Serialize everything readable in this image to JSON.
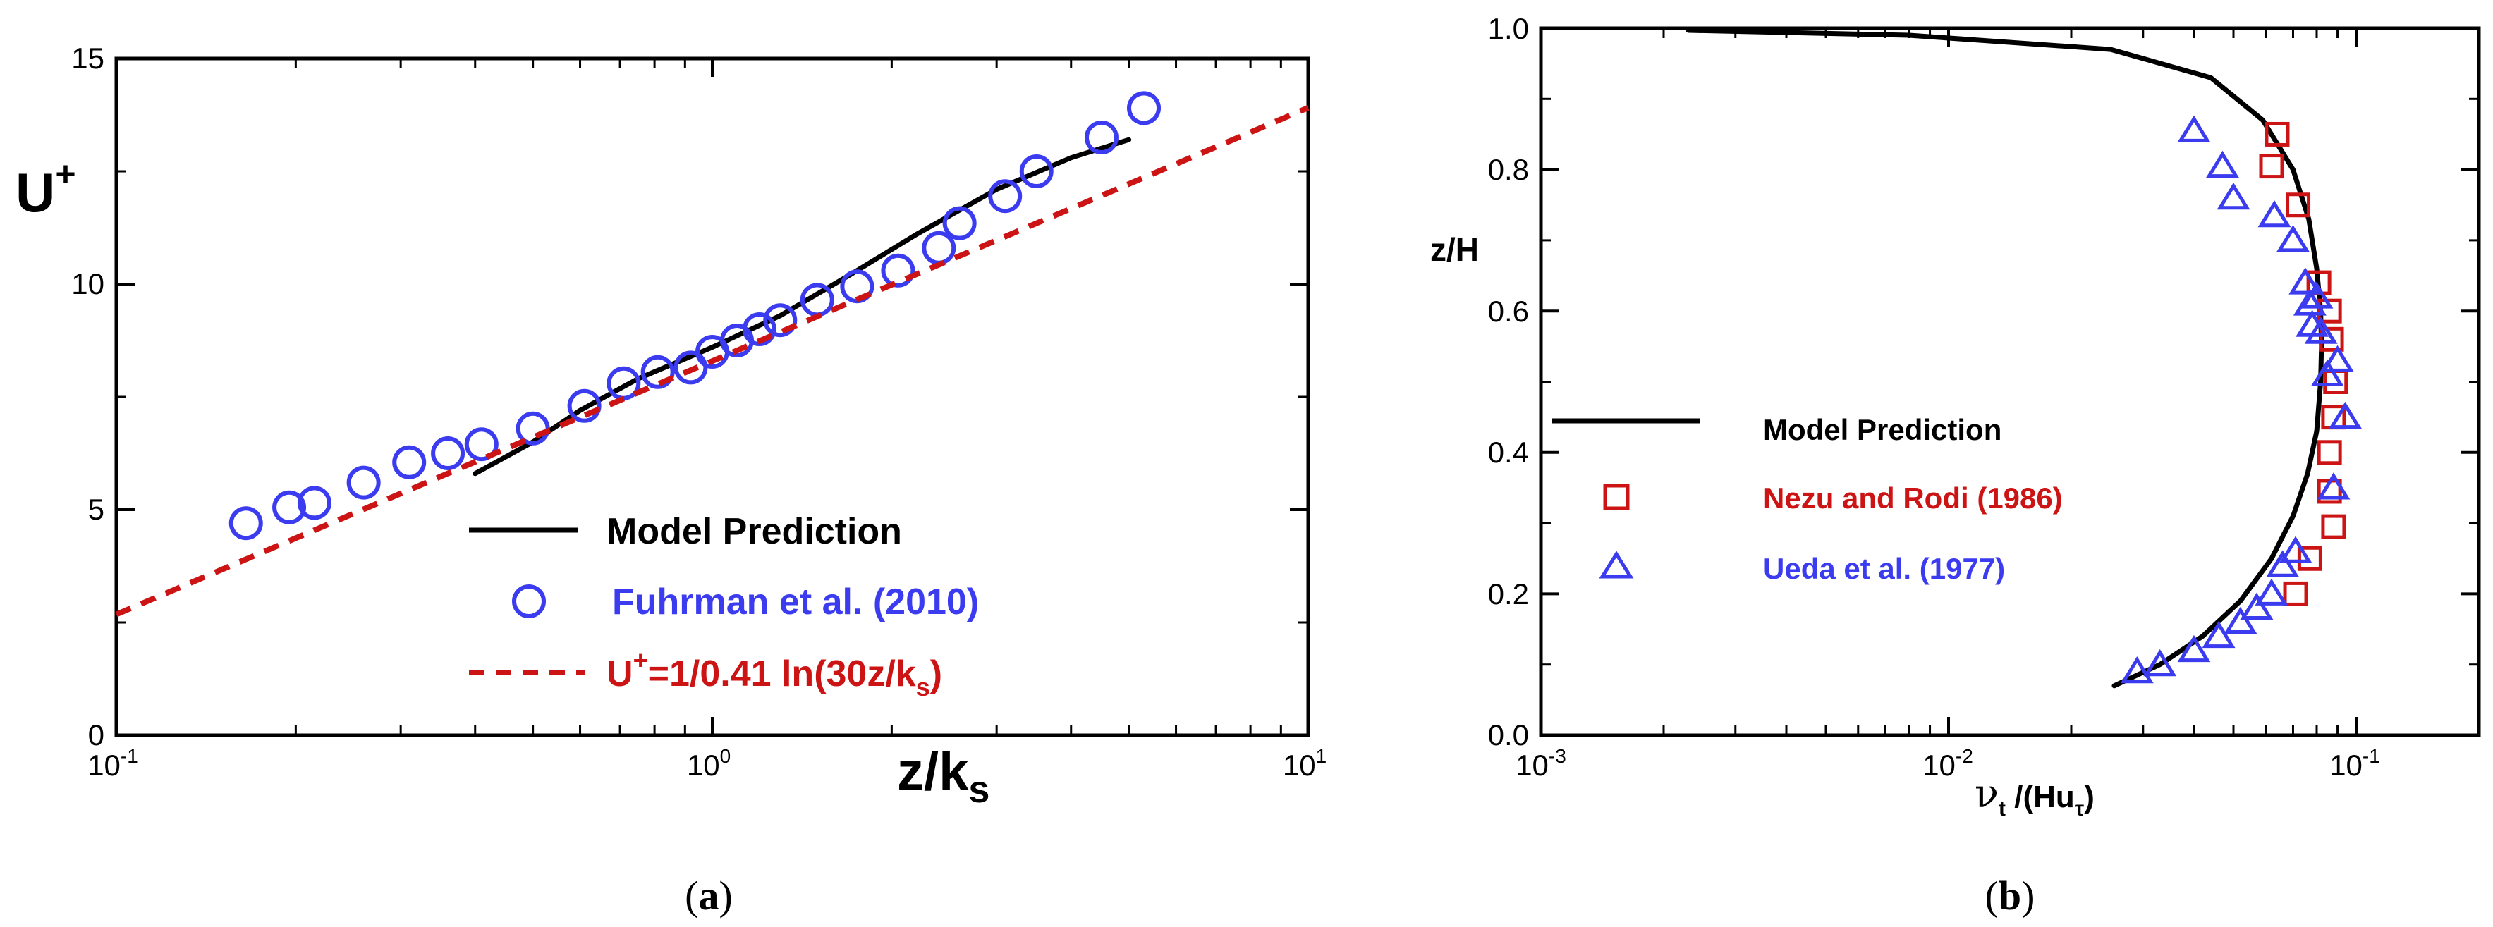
{
  "colors": {
    "model": "#000000",
    "blue": "#3b3bf0",
    "red": "#cc1414"
  },
  "chart_data": [
    {
      "type": "line",
      "panel_label": "a",
      "xscale": "log",
      "xlim": [
        0.1,
        10
      ],
      "ylim": [
        0,
        15
      ],
      "xlabel": {
        "main": "z/k",
        "sub": "s"
      },
      "ylabel": {
        "main": "U",
        "sup": "+"
      },
      "x_ticks": [
        {
          "base": "10",
          "exp": "-1"
        },
        {
          "base": "10",
          "exp": "0"
        },
        {
          "base": "10",
          "exp": "1"
        }
      ],
      "y_ticks": [
        "0",
        "5",
        "10",
        "15"
      ],
      "series": [
        {
          "name": "Model Prediction",
          "style": "solid",
          "color": "#000000",
          "x": [
            0.4,
            0.5,
            0.6,
            0.75,
            1.0,
            1.3,
            1.7,
            2.2,
            3.0,
            4.0,
            5.0
          ],
          "y": [
            5.8,
            6.5,
            7.2,
            7.9,
            8.6,
            9.3,
            10.2,
            11.1,
            12.1,
            12.8,
            13.2
          ]
        },
        {
          "name": "Fuhrman et al. (2010)",
          "style": "circle",
          "color": "#3b3bf0",
          "x": [
            0.165,
            0.195,
            0.215,
            0.26,
            0.31,
            0.36,
            0.41,
            0.5,
            0.61,
            0.71,
            0.81,
            0.92,
            1.0,
            1.1,
            1.2,
            1.3,
            1.5,
            1.75,
            2.05,
            2.4,
            2.6,
            3.1,
            3.5,
            4.5,
            5.3
          ],
          "y": [
            4.7,
            5.05,
            5.15,
            5.6,
            6.05,
            6.25,
            6.45,
            6.8,
            7.3,
            7.8,
            8.05,
            8.15,
            8.5,
            8.75,
            9.0,
            9.2,
            9.65,
            9.95,
            10.3,
            10.8,
            11.35,
            11.95,
            12.5,
            13.25,
            13.9
          ]
        },
        {
          "name": "U+=1/0.41 ln(30z/ks)",
          "style": "dashed",
          "color": "#cc1414",
          "x": [
            0.1,
            10
          ],
          "y": [
            2.68,
            13.91
          ]
        }
      ],
      "legend": [
        {
          "main": "Model Prediction"
        },
        {
          "main": "Fuhrman et al. (2010)"
        },
        {
          "main": "U",
          "sup": "+",
          "mid": "=1/0.41 ln(30z/k",
          "sub": "s",
          "end": ")"
        }
      ]
    },
    {
      "type": "line",
      "panel_label": "b",
      "xscale": "log",
      "xlim": [
        0.001,
        0.2
      ],
      "ylim": [
        0,
        1.0
      ],
      "xlabel": {
        "nu": "ν",
        "t": "t",
        "mid": " /(Hu",
        "tau": "τ",
        "end": ")"
      },
      "ylabel": "z/H",
      "x_ticks": [
        {
          "base": "10",
          "exp": "-3"
        },
        {
          "base": "10",
          "exp": "-2"
        },
        {
          "base": "10",
          "exp": "-1"
        }
      ],
      "y_ticks": [
        "0.0",
        "0.2",
        "0.4",
        "0.6",
        "0.8",
        "1.0"
      ],
      "series": [
        {
          "name": "Model Prediction",
          "style": "solid",
          "color": "#000000",
          "x": [
            0.0255,
            0.033,
            0.042,
            0.052,
            0.062,
            0.07,
            0.076,
            0.08,
            0.0818,
            0.0822,
            0.0818,
            0.08,
            0.0765,
            0.07,
            0.059,
            0.044,
            0.025,
            0.008,
            0.0023
          ],
          "y": [
            0.07,
            0.1,
            0.14,
            0.19,
            0.25,
            0.31,
            0.37,
            0.43,
            0.5,
            0.55,
            0.6,
            0.66,
            0.73,
            0.8,
            0.87,
            0.93,
            0.97,
            0.99,
            0.997
          ]
        },
        {
          "name": "Nezu and Rodi (1986)",
          "style": "square",
          "color": "#cc1414",
          "x": [
            0.062,
            0.072,
            0.081,
            0.086,
            0.087,
            0.089,
            0.088,
            0.086,
            0.086,
            0.088,
            0.077,
            0.071,
            0.064
          ],
          "y": [
            0.805,
            0.75,
            0.64,
            0.6,
            0.56,
            0.5,
            0.45,
            0.4,
            0.345,
            0.295,
            0.25,
            0.2,
            0.85
          ]
        },
        {
          "name": "Ueda et al. (1977)",
          "style": "triangle",
          "color": "#3b3bf0",
          "x": [
            0.04,
            0.047,
            0.05,
            0.063,
            0.07,
            0.075,
            0.08,
            0.077,
            0.078,
            0.082,
            0.09,
            0.085,
            0.094,
            0.088,
            0.071,
            0.066,
            0.062,
            0.057,
            0.052,
            0.046,
            0.04,
            0.033,
            0.029
          ],
          "y": [
            0.855,
            0.805,
            0.76,
            0.735,
            0.7,
            0.64,
            0.62,
            0.61,
            0.58,
            0.57,
            0.53,
            0.51,
            0.45,
            0.35,
            0.26,
            0.24,
            0.2,
            0.18,
            0.16,
            0.14,
            0.12,
            0.1,
            0.09
          ]
        }
      ],
      "legend": [
        {
          "main": "Model Prediction"
        },
        {
          "main": "Nezu and Rodi (1986)"
        },
        {
          "main": "Ueda et al. (1977)"
        }
      ]
    }
  ]
}
